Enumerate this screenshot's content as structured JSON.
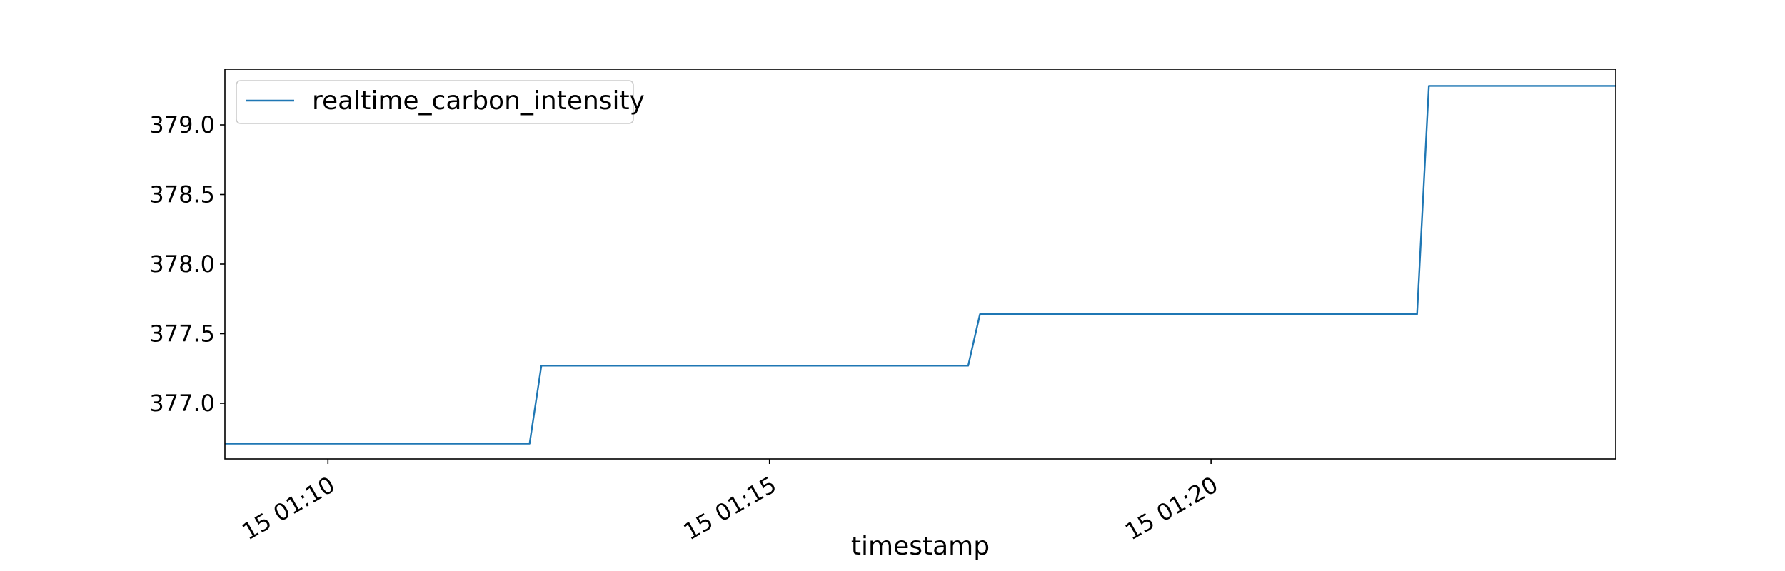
{
  "chart_data": {
    "type": "line",
    "title": "",
    "xlabel": "timestamp",
    "ylabel": "",
    "x_ticks": [
      {
        "value": "2024-01-15T01:10:00",
        "label": "15 01:10"
      },
      {
        "value": "2024-01-15T01:15:00",
        "label": "15 01:15"
      },
      {
        "value": "2024-01-15T01:20:00",
        "label": "15 01:20"
      }
    ],
    "y_ticks": [
      377.0,
      377.5,
      378.0,
      378.5,
      379.0
    ],
    "xlim": [
      "2024-01-15T01:08:50",
      "2024-01-15T01:24:35"
    ],
    "ylim": [
      376.6,
      379.4
    ],
    "grid": false,
    "legend_position": "top-left",
    "colors": {
      "series": "#1f77b4"
    },
    "series": [
      {
        "name": "realtime_carbon_intensity",
        "x": [
          "2024-01-15T01:08:50",
          "2024-01-15T01:12:17",
          "2024-01-15T01:12:25",
          "2024-01-15T01:17:15",
          "2024-01-15T01:17:23",
          "2024-01-15T01:22:20",
          "2024-01-15T01:22:28",
          "2024-01-15T01:24:35"
        ],
        "values": [
          376.71,
          376.71,
          377.27,
          377.27,
          377.64,
          377.64,
          379.28,
          379.28
        ]
      }
    ]
  }
}
